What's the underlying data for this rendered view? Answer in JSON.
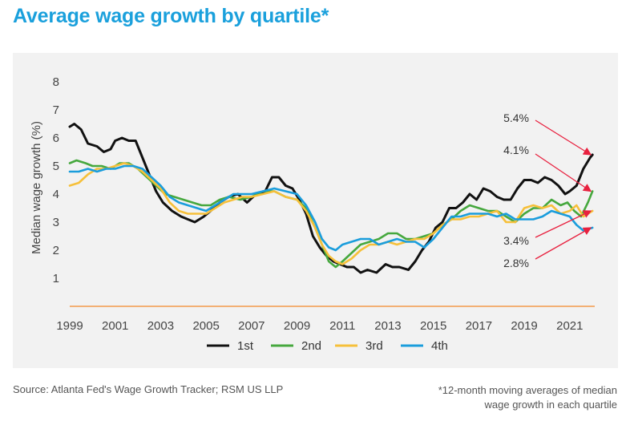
{
  "title": "Average wage growth by quartile*",
  "source": "Source: Atlanta Fed's Wage Growth Tracker; RSM US LLP",
  "footnote": [
    "*12-month moving averages of median",
    "wage growth in each quartile"
  ],
  "colors": {
    "title": "#1aa0dc",
    "panel": "#f2f2f2",
    "arrow": "#e8213f",
    "baseline": "#f39a4a"
  },
  "chart_data": {
    "type": "line",
    "title": "Average wage growth by quartile*",
    "ylabel": "Median wage growth (%)",
    "xlabel": "",
    "xlim": [
      1999,
      2022.1
    ],
    "ylim": [
      0,
      8
    ],
    "yticks": [
      "1",
      "2",
      "3",
      "4",
      "5",
      "6",
      "7",
      "8"
    ],
    "xticks": [
      "1999",
      "2001",
      "2003",
      "2005",
      "2007",
      "2009",
      "2011",
      "2013",
      "2015",
      "2017",
      "2019",
      "2021"
    ],
    "grid": false,
    "legend_position": "bottom",
    "series": [
      {
        "name": "1st",
        "color": "#111111",
        "x": [
          1999,
          1999.2,
          1999.5,
          1999.8,
          2000.2,
          2000.5,
          2000.8,
          2001,
          2001.3,
          2001.6,
          2001.9,
          2002.2,
          2002.5,
          2002.8,
          2003.1,
          2003.5,
          2003.9,
          2004.2,
          2004.5,
          2004.9,
          2005.2,
          2005.6,
          2006,
          2006.4,
          2006.8,
          2007.2,
          2007.6,
          2007.9,
          2008.2,
          2008.5,
          2008.8,
          2009.1,
          2009.4,
          2009.7,
          2010,
          2010.3,
          2010.6,
          2010.9,
          2011.2,
          2011.5,
          2011.8,
          2012.1,
          2012.5,
          2012.9,
          2013.2,
          2013.5,
          2013.9,
          2014.2,
          2014.5,
          2014.8,
          2015.1,
          2015.4,
          2015.7,
          2016,
          2016.3,
          2016.6,
          2016.9,
          2017.2,
          2017.5,
          2017.8,
          2018.1,
          2018.4,
          2018.7,
          2019,
          2019.3,
          2019.6,
          2019.9,
          2020.2,
          2020.5,
          2020.8,
          2021,
          2021.3,
          2021.6,
          2021.9,
          2022
        ],
        "values": [
          6.4,
          6.5,
          6.3,
          5.8,
          5.7,
          5.5,
          5.6,
          5.9,
          6.0,
          5.9,
          5.9,
          5.3,
          4.7,
          4.1,
          3.7,
          3.4,
          3.2,
          3.1,
          3.0,
          3.2,
          3.4,
          3.7,
          3.9,
          4.0,
          3.7,
          4.0,
          4.1,
          4.6,
          4.6,
          4.3,
          4.2,
          3.8,
          3.3,
          2.5,
          2.1,
          1.8,
          1.6,
          1.5,
          1.4,
          1.4,
          1.2,
          1.3,
          1.2,
          1.5,
          1.4,
          1.4,
          1.3,
          1.6,
          2.0,
          2.3,
          2.8,
          3.0,
          3.5,
          3.5,
          3.7,
          4.0,
          3.8,
          4.2,
          4.1,
          3.9,
          3.8,
          3.8,
          4.2,
          4.5,
          4.5,
          4.4,
          4.6,
          4.5,
          4.3,
          4.0,
          4.1,
          4.3,
          4.9,
          5.3,
          5.4
        ]
      },
      {
        "name": "2nd",
        "color": "#46a83e",
        "x": [
          1999,
          1999.3,
          1999.7,
          2000,
          2000.4,
          2000.8,
          2001.2,
          2001.6,
          2002,
          2002.4,
          2002.8,
          2003.2,
          2003.6,
          2004,
          2004.4,
          2004.8,
          2005.2,
          2005.6,
          2006,
          2006.5,
          2007,
          2007.5,
          2008,
          2008.5,
          2009,
          2009.4,
          2009.8,
          2010.1,
          2010.4,
          2010.7,
          2011,
          2011.4,
          2011.8,
          2012.2,
          2012.6,
          2013,
          2013.4,
          2013.8,
          2014.2,
          2014.6,
          2015,
          2015.4,
          2015.8,
          2016.2,
          2016.6,
          2017,
          2017.4,
          2017.8,
          2018.2,
          2018.6,
          2019,
          2019.4,
          2019.8,
          2020.2,
          2020.6,
          2020.9,
          2021.2,
          2021.5,
          2021.8,
          2022
        ],
        "values": [
          5.1,
          5.2,
          5.1,
          5.0,
          5.0,
          4.9,
          5.1,
          5.1,
          4.9,
          4.6,
          4.3,
          4.0,
          3.9,
          3.8,
          3.7,
          3.6,
          3.6,
          3.8,
          3.9,
          3.8,
          3.9,
          4.1,
          4.1,
          3.9,
          3.8,
          3.5,
          2.8,
          2.2,
          1.6,
          1.4,
          1.6,
          1.9,
          2.2,
          2.3,
          2.4,
          2.6,
          2.6,
          2.4,
          2.4,
          2.5,
          2.6,
          2.9,
          3.1,
          3.4,
          3.6,
          3.5,
          3.4,
          3.4,
          3.2,
          3.0,
          3.3,
          3.5,
          3.5,
          3.8,
          3.6,
          3.7,
          3.4,
          3.2,
          3.7,
          4.1
        ]
      },
      {
        "name": "3rd",
        "color": "#f6c03a",
        "x": [
          1999,
          1999.4,
          1999.8,
          2000.2,
          2000.6,
          2001,
          2001.4,
          2001.8,
          2002.2,
          2002.6,
          2003,
          2003.4,
          2003.8,
          2004.2,
          2004.6,
          2005,
          2005.4,
          2005.8,
          2006.2,
          2006.6,
          2007,
          2007.5,
          2008,
          2008.5,
          2009,
          2009.4,
          2009.8,
          2010.1,
          2010.4,
          2010.7,
          2011,
          2011.4,
          2011.8,
          2012.2,
          2012.6,
          2013,
          2013.4,
          2013.8,
          2014.2,
          2014.6,
          2015,
          2015.4,
          2015.8,
          2016.2,
          2016.6,
          2017,
          2017.4,
          2017.8,
          2018.2,
          2018.6,
          2019,
          2019.4,
          2019.8,
          2020.2,
          2020.6,
          2021,
          2021.3,
          2021.6,
          2022
        ],
        "values": [
          4.3,
          4.4,
          4.7,
          4.9,
          4.9,
          5.0,
          5.1,
          5.0,
          4.8,
          4.5,
          4.2,
          3.7,
          3.4,
          3.3,
          3.3,
          3.3,
          3.5,
          3.7,
          3.8,
          3.9,
          3.9,
          4.0,
          4.1,
          3.9,
          3.8,
          3.4,
          2.8,
          2.2,
          1.8,
          1.6,
          1.5,
          1.7,
          2.0,
          2.2,
          2.2,
          2.3,
          2.2,
          2.3,
          2.4,
          2.4,
          2.6,
          2.9,
          3.1,
          3.1,
          3.2,
          3.2,
          3.3,
          3.4,
          3.0,
          3.0,
          3.5,
          3.6,
          3.5,
          3.6,
          3.3,
          3.4,
          3.6,
          3.2,
          3.4
        ]
      },
      {
        "name": "4th",
        "color": "#1a9ddc",
        "x": [
          1999,
          1999.4,
          1999.8,
          2000.2,
          2000.6,
          2001,
          2001.4,
          2001.8,
          2002.2,
          2002.6,
          2003,
          2003.4,
          2003.8,
          2004.2,
          2004.6,
          2005,
          2005.4,
          2005.8,
          2006.2,
          2006.6,
          2007,
          2007.5,
          2008,
          2008.5,
          2009,
          2009.4,
          2009.8,
          2010.1,
          2010.4,
          2010.7,
          2011,
          2011.4,
          2011.8,
          2012.2,
          2012.6,
          2013,
          2013.4,
          2013.8,
          2014.2,
          2014.6,
          2015,
          2015.4,
          2015.8,
          2016.2,
          2016.6,
          2017,
          2017.4,
          2017.8,
          2018.2,
          2018.6,
          2019,
          2019.4,
          2019.8,
          2020.2,
          2020.6,
          2021,
          2021.3,
          2021.6,
          2022
        ],
        "values": [
          4.8,
          4.8,
          4.9,
          4.8,
          4.9,
          4.9,
          5.0,
          5.0,
          4.9,
          4.6,
          4.3,
          3.9,
          3.7,
          3.6,
          3.5,
          3.4,
          3.6,
          3.8,
          4.0,
          4.0,
          4.0,
          4.1,
          4.2,
          4.1,
          4.0,
          3.6,
          3.0,
          2.4,
          2.1,
          2.0,
          2.2,
          2.3,
          2.4,
          2.4,
          2.2,
          2.3,
          2.4,
          2.3,
          2.3,
          2.1,
          2.4,
          2.8,
          3.2,
          3.2,
          3.3,
          3.3,
          3.3,
          3.2,
          3.3,
          3.1,
          3.1,
          3.1,
          3.2,
          3.4,
          3.3,
          3.2,
          2.9,
          2.7,
          2.8
        ]
      }
    ],
    "annotations": [
      {
        "text": "5.4%",
        "series": "1st"
      },
      {
        "text": "4.1%",
        "series": "2nd"
      },
      {
        "text": "3.4%",
        "series": "3rd"
      },
      {
        "text": "2.8%",
        "series": "4th"
      }
    ]
  }
}
